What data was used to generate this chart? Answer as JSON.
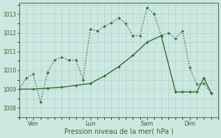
{
  "background_color": "#cce8e0",
  "grid_color": "#aacccc",
  "line_color": "#2d6a2d",
  "xlabel": "Pression niveau de la mer( hPa )",
  "ylim": [
    1007.6,
    1013.6
  ],
  "yticks": [
    1008,
    1009,
    1010,
    1011,
    1012,
    1013
  ],
  "xlim": [
    0,
    28
  ],
  "xtick_labels": [
    "Ven",
    "Lun",
    "Sam",
    "Dim"
  ],
  "xtick_positions": [
    2,
    10,
    18,
    24
  ],
  "dotted_x": [
    0,
    1,
    2,
    3,
    4,
    5,
    6,
    7,
    8,
    9,
    10,
    11,
    12,
    13,
    14,
    15,
    16,
    17,
    18,
    19,
    20,
    21,
    22,
    23,
    24,
    25,
    26,
    27
  ],
  "dotted_y": [
    1009.0,
    1009.6,
    1009.8,
    1008.3,
    1009.9,
    1010.55,
    1010.7,
    1010.55,
    1010.55,
    1009.5,
    1012.2,
    1012.1,
    1012.35,
    1012.55,
    1012.8,
    1012.5,
    1011.85,
    1011.85,
    1013.35,
    1013.0,
    1011.85,
    1012.0,
    1011.7,
    1012.1,
    1010.15,
    1009.25,
    1009.3,
    1008.8
  ],
  "solid_x": [
    0,
    2,
    4,
    6,
    8,
    10,
    12,
    14,
    16,
    18,
    20,
    22,
    23,
    24,
    25,
    26,
    27
  ],
  "solid_y": [
    1009.0,
    1009.0,
    1009.05,
    1009.1,
    1009.2,
    1009.3,
    1009.7,
    1010.2,
    1010.8,
    1011.5,
    1011.85,
    1008.85,
    1008.85,
    1008.85,
    1008.85,
    1009.6,
    1008.8
  ],
  "marker_size": 3.5,
  "line_width": 1.0
}
